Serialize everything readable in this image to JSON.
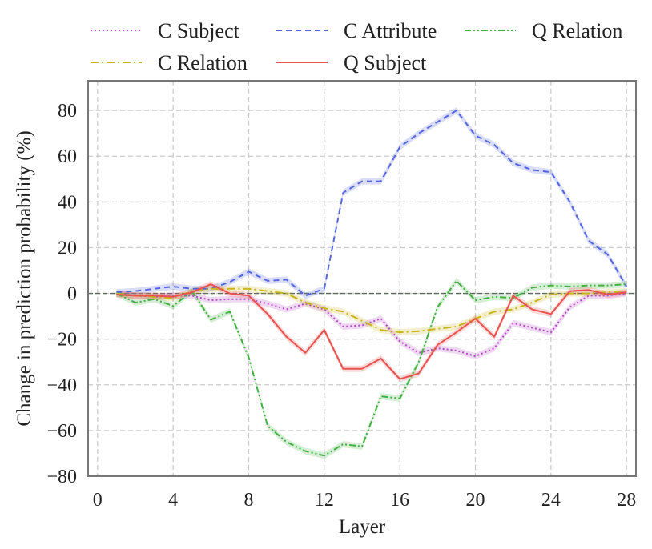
{
  "chart_data": {
    "type": "line",
    "xlabel": "Layer",
    "ylabel": "Change in prediction probability (%)",
    "xlim": [
      -0.5,
      28.5
    ],
    "ylim": [
      -80,
      93
    ],
    "xticks": [
      0,
      4,
      8,
      12,
      16,
      20,
      24,
      28
    ],
    "yticks": [
      -80,
      -60,
      -40,
      -20,
      0,
      20,
      40,
      60,
      80
    ],
    "xtick_labels": [
      "0",
      "4",
      "8",
      "12",
      "16",
      "20",
      "24",
      "28"
    ],
    "ytick_labels": [
      "−80",
      "−60",
      "−40",
      "−20",
      "0",
      "20",
      "40",
      "60",
      "80"
    ],
    "grid": true,
    "zero_reference_line": true,
    "legend_position": "top, outside plot, 3 columns",
    "x": [
      1,
      2,
      3,
      4,
      5,
      6,
      7,
      8,
      9,
      10,
      11,
      12,
      13,
      14,
      15,
      16,
      17,
      18,
      19,
      20,
      21,
      22,
      23,
      24,
      25,
      26,
      27,
      28
    ],
    "series": [
      {
        "name": "C Subject",
        "color": "#b44ec2",
        "dash": "dotted",
        "values": [
          0,
          -1,
          -1.5,
          -1,
          -1,
          -3,
          -2.5,
          -2.5,
          -4.5,
          -7,
          -4.5,
          -7,
          -14.5,
          -14,
          -11,
          -21,
          -26,
          -24,
          -25,
          -27.5,
          -24,
          -13,
          -15,
          -17,
          -6,
          -1,
          -1,
          0
        ]
      },
      {
        "name": "C Attribute",
        "color": "#5566dd",
        "dash": "dashed",
        "values": [
          0.5,
          1,
          2,
          3,
          2,
          2,
          5,
          9.5,
          5.5,
          6,
          -1,
          2,
          44,
          49,
          49,
          64,
          70,
          75,
          80,
          69,
          65,
          57,
          54,
          53,
          40,
          23,
          17,
          3
        ]
      },
      {
        "name": "Q Relation",
        "color": "#44b044",
        "dash": "dashdotdot",
        "values": [
          0,
          -4,
          -2.5,
          -5.5,
          1,
          -11.5,
          -8,
          -28,
          -58,
          -65,
          -69,
          -71,
          -66,
          -67,
          -45,
          -46,
          -30,
          -6,
          5.5,
          -3,
          -1.5,
          -2,
          2.5,
          3.5,
          3,
          3.5,
          3.5,
          4
        ]
      },
      {
        "name": "C Relation",
        "color": "#c8b41e",
        "dash": "dashdot",
        "values": [
          0,
          -1,
          -1.5,
          -2,
          1,
          2,
          2,
          2,
          1,
          0,
          -4,
          -6.5,
          -8,
          -12,
          -16,
          -17,
          -16.5,
          -15.5,
          -14.5,
          -11,
          -8,
          -7,
          -4,
          -0.5,
          0,
          0,
          0.5,
          1
        ]
      },
      {
        "name": "Q Subject",
        "color": "#e8524f",
        "dash": "solid",
        "values": [
          -0.5,
          -1,
          -1,
          -1.5,
          0.5,
          4,
          0,
          -1,
          -9,
          -19,
          -26,
          -16,
          -33,
          -33,
          -28.5,
          -37.5,
          -35,
          -22.5,
          -17,
          -11,
          -19,
          -1,
          -7,
          -9,
          1,
          1.5,
          -0.5,
          0.5
        ]
      }
    ]
  }
}
